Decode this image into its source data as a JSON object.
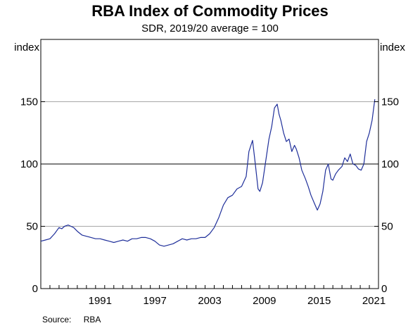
{
  "chart_data": {
    "type": "line",
    "title": "RBA Index of Commodity Prices",
    "subtitle": "SDR, 2019/20 average = 100",
    "ylabel_left": "index",
    "ylabel_right": "index",
    "xlim": [
      1985.0,
      2022.0
    ],
    "ylim": [
      0,
      200
    ],
    "yticks": [
      0,
      50,
      100,
      150
    ],
    "xtick_values": [
      1991,
      1997,
      2003,
      2009,
      2015,
      2021
    ],
    "xtick_labels": [
      "1991",
      "1997",
      "2003",
      "2009",
      "2015",
      "2021"
    ],
    "reference_line": 100,
    "grid": "horizontal",
    "series": [
      {
        "color": "#1f2f9a",
        "x": [
          1985.0,
          1985.5,
          1986.0,
          1986.5,
          1987.0,
          1987.3,
          1987.6,
          1988.0,
          1988.3,
          1988.6,
          1989.0,
          1989.5,
          1990.0,
          1990.5,
          1991.0,
          1991.5,
          1992.0,
          1992.5,
          1993.0,
          1993.5,
          1994.0,
          1994.5,
          1995.0,
          1995.5,
          1996.0,
          1996.5,
          1997.0,
          1997.5,
          1998.0,
          1998.5,
          1999.0,
          1999.5,
          2000.0,
          2000.5,
          2001.0,
          2001.5,
          2002.0,
          2002.5,
          2003.0,
          2003.5,
          2004.0,
          2004.5,
          2005.0,
          2005.5,
          2006.0,
          2006.5,
          2007.0,
          2007.5,
          2007.8,
          2008.2,
          2008.5,
          2008.8,
          2009.0,
          2009.3,
          2009.6,
          2010.0,
          2010.3,
          2010.6,
          2010.9,
          2011.1,
          2011.3,
          2011.6,
          2011.9,
          2012.2,
          2012.5,
          2012.8,
          2013.0,
          2013.3,
          2013.6,
          2014.0,
          2014.3,
          2014.6,
          2015.0,
          2015.3,
          2015.6,
          2015.9,
          2016.2,
          2016.5,
          2016.8,
          2017.0,
          2017.3,
          2017.6,
          2018.0,
          2018.3,
          2018.6,
          2018.9,
          2019.2,
          2019.5,
          2019.8,
          2020.1,
          2020.4,
          2020.7,
          2021.0,
          2021.3,
          2021.6
        ],
        "values": [
          38,
          39,
          40,
          44,
          49,
          48,
          50,
          51,
          50,
          49,
          46,
          43,
          42,
          41,
          40,
          40,
          39,
          38,
          37,
          38,
          39,
          38,
          40,
          40,
          41,
          41,
          40,
          38,
          35,
          34,
          35,
          36,
          38,
          40,
          39,
          40,
          40,
          41,
          41,
          44,
          49,
          57,
          67,
          73,
          75,
          80,
          82,
          90,
          110,
          119,
          100,
          80,
          78,
          85,
          100,
          120,
          130,
          145,
          148,
          140,
          135,
          125,
          118,
          120,
          110,
          115,
          112,
          105,
          95,
          88,
          82,
          75,
          68,
          63,
          68,
          78,
          95,
          100,
          88,
          87,
          92,
          95,
          98,
          105,
          102,
          108,
          100,
          99,
          96,
          95,
          100,
          118,
          125,
          135,
          152
        ]
      }
    ]
  },
  "footer": {
    "source_label": "Source:",
    "source_value": "RBA"
  }
}
